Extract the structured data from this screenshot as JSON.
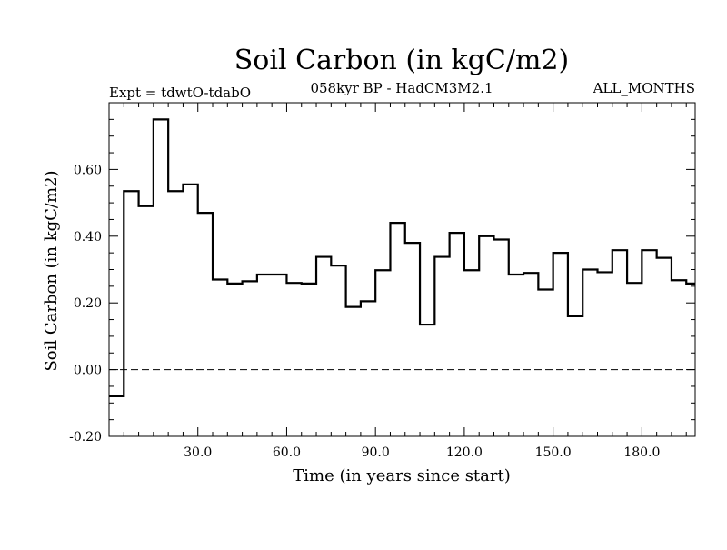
{
  "chart_data": {
    "type": "line",
    "style": "step",
    "title": "Soil Carbon (in kgC/m2)",
    "subtitle_left": "Expt = tdwtO-tdabO",
    "subtitle_center": "058kyr BP - HadCM3M2.1",
    "subtitle_right": "ALL_MONTHS",
    "xlabel": "Time (in years since start)",
    "ylabel": "Soil Carbon (in kgC/m2)",
    "xlim": [
      0,
      198
    ],
    "ylim": [
      -0.2,
      0.8
    ],
    "x_ticks": [
      30,
      60,
      90,
      120,
      150,
      180
    ],
    "x_tick_labels": [
      "30.0",
      "60.0",
      "90.0",
      "120.0",
      "150.0",
      "180.0"
    ],
    "y_ticks": [
      -0.2,
      0.0,
      0.2,
      0.4,
      0.6
    ],
    "y_tick_labels": [
      "-0.20",
      "0.00",
      "0.20",
      "0.40",
      "0.60"
    ],
    "reference_line": 0.0,
    "series": [
      {
        "name": "Soil Carbon",
        "color": "#000000",
        "x": [
          0,
          5,
          10,
          15,
          20,
          25,
          30,
          35,
          40,
          45,
          50,
          55,
          60,
          65,
          70,
          75,
          80,
          85,
          90,
          95,
          100,
          105,
          110,
          115,
          120,
          125,
          130,
          135,
          140,
          145,
          150,
          155,
          160,
          165,
          170,
          175,
          180,
          185,
          190,
          195
        ],
        "values": [
          -0.08,
          0.535,
          0.49,
          0.75,
          0.535,
          0.555,
          0.47,
          0.27,
          0.258,
          0.265,
          0.285,
          0.285,
          0.26,
          0.258,
          0.338,
          0.312,
          0.188,
          0.205,
          0.298,
          0.44,
          0.38,
          0.135,
          0.338,
          0.41,
          0.298,
          0.4,
          0.39,
          0.285,
          0.29,
          0.24,
          0.35,
          0.16,
          0.3,
          0.292,
          0.358,
          0.26,
          0.358,
          0.335,
          0.268,
          0.258
        ]
      }
    ]
  }
}
